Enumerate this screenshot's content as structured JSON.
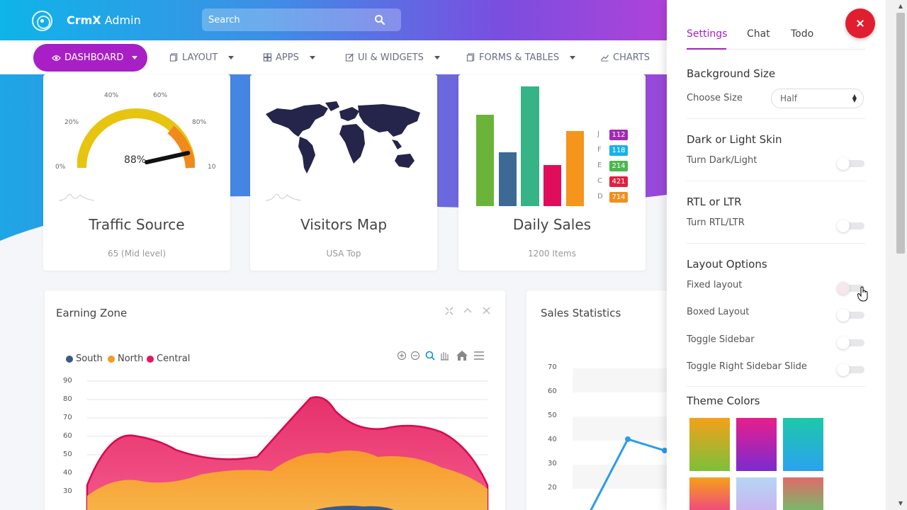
{
  "header": {
    "brand_bold": "CrmX",
    "brand_rest": " Admin",
    "search_placeholder": "Search"
  },
  "menu": [
    {
      "label": "DASHBOARD",
      "icon": "eye-icon",
      "active": true
    },
    {
      "label": "LAYOUT",
      "icon": "copy-icon"
    },
    {
      "label": "APPS",
      "icon": "grid-icon"
    },
    {
      "label": "UI & WIDGETS",
      "icon": "edit-icon"
    },
    {
      "label": "FORMS & TABLES",
      "icon": "copy-icon"
    },
    {
      "label": "CHARTS",
      "icon": "line-chart-icon"
    }
  ],
  "cards": {
    "traffic": {
      "title": "Traffic Source",
      "subtitle": "65 (Mid level)",
      "gauge_value_label": "88%",
      "gauge_value": 88,
      "gauge_labels": [
        "0%",
        "20%",
        "40%",
        "60%",
        "80%",
        "10"
      ]
    },
    "visitors": {
      "title": "Visitors Map",
      "subtitle": "USA Top"
    },
    "sales": {
      "title": "Daily Sales",
      "subtitle": "1200 Items",
      "legend": [
        {
          "letter": "J",
          "value": "112",
          "color": "#a22ab5"
        },
        {
          "letter": "F",
          "value": "118",
          "color": "#1ab1e6"
        },
        {
          "letter": "E",
          "value": "214",
          "color": "#4cb74e"
        },
        {
          "letter": "C",
          "value": "421",
          "color": "#e0203f"
        },
        {
          "letter": "D",
          "value": "714",
          "color": "#f0901e"
        }
      ]
    }
  },
  "earning": {
    "title": "Earning Zone",
    "legend": [
      {
        "name": "South",
        "color": "#3b5a8a"
      },
      {
        "name": "North",
        "color": "#f59c1a"
      },
      {
        "name": "Central",
        "color": "#e0195a"
      }
    ],
    "yticks": [
      "90",
      "80",
      "70",
      "60",
      "50",
      "40",
      "30"
    ]
  },
  "sales_stats": {
    "title": "Sales Statistics",
    "yticks": [
      "70",
      "60",
      "50",
      "40",
      "30",
      "20"
    ]
  },
  "settings": {
    "tabs": [
      "Settings",
      "Chat",
      "Todo"
    ],
    "bg_size_title": "Background Size",
    "choose_size": "Choose Size",
    "size_value": "Half",
    "skin_title": "Dark or Light Skin",
    "skin_option": "Turn Dark/Light",
    "rtl_title": "RTL or LTR",
    "rtl_option": "Turn RTL/LTR",
    "layout_title": "Layout Options",
    "layout_options": [
      "Fixed layout",
      "Boxed Layout",
      "Toggle Sidebar",
      "Toggle Right Sidebar Slide"
    ],
    "theme_title": "Theme Colors"
  }
}
